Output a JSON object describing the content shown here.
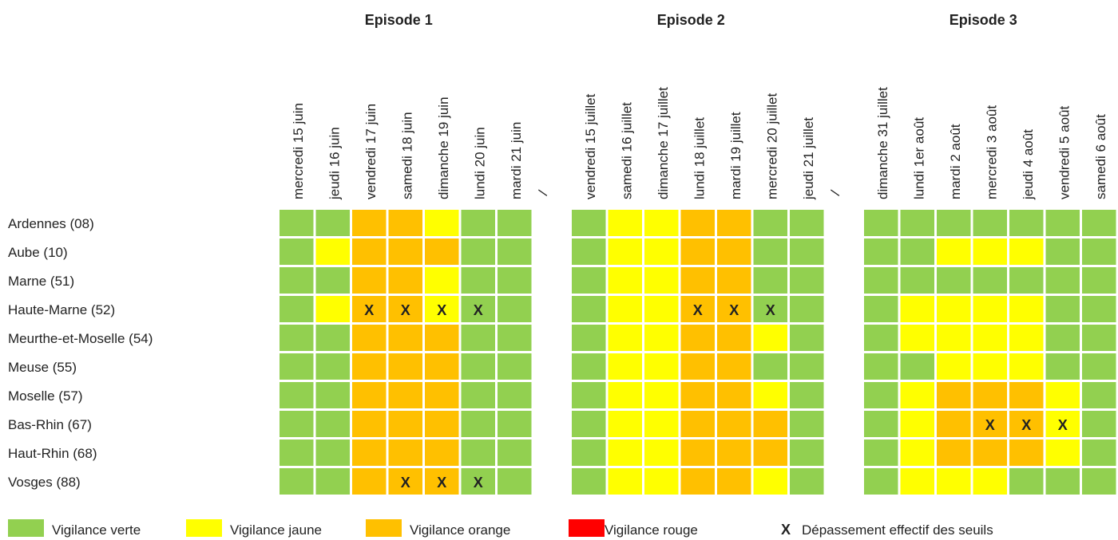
{
  "episodes": [
    {
      "title": "Episode 1",
      "days": [
        "mercredi 15 juin",
        "jeudi 16 juin",
        "vendredi 17 juin",
        "samedi 18 juin",
        "dimanche 19 juin",
        "lundi 20 juin",
        "mardi 21 juin"
      ]
    },
    {
      "title": "Episode 2",
      "days": [
        "vendredi 15 juillet",
        "samedi 16 juillet",
        "dimanche 17 juillet",
        "lundi 18 juillet",
        "mardi 19 juillet",
        "mercredi 20 juillet",
        "jeudi 21 juillet"
      ]
    },
    {
      "title": "Episode 3",
      "days": [
        "dimanche 31 juillet",
        "lundi 1er août",
        "mardi 2 août",
        "mercredi 3 août",
        "jeudi 4 août",
        "vendredi 5 août",
        "samedi 6 août"
      ]
    }
  ],
  "separator": "/",
  "rows": [
    {
      "name": "Ardennes (08)",
      "cells": [
        [
          0,
          0,
          2,
          2,
          1,
          0,
          0
        ],
        [
          0,
          1,
          1,
          2,
          2,
          0,
          0
        ],
        [
          0,
          0,
          0,
          0,
          0,
          0,
          0
        ]
      ]
    },
    {
      "name": "Aube (10)",
      "cells": [
        [
          0,
          1,
          2,
          2,
          2,
          0,
          0
        ],
        [
          0,
          1,
          1,
          2,
          2,
          0,
          0
        ],
        [
          0,
          0,
          1,
          1,
          1,
          0,
          0
        ]
      ]
    },
    {
      "name": "Marne (51)",
      "cells": [
        [
          0,
          0,
          2,
          2,
          1,
          0,
          0
        ],
        [
          0,
          1,
          1,
          2,
          2,
          0,
          0
        ],
        [
          0,
          0,
          0,
          0,
          0,
          0,
          0
        ]
      ]
    },
    {
      "name": "Haute-Marne (52)",
      "cells": [
        [
          0,
          1,
          {
            "level": 2,
            "mark": "X"
          },
          {
            "level": 2,
            "mark": "X"
          },
          {
            "level": 1,
            "mark": "X"
          },
          {
            "level": 0,
            "mark": "X"
          },
          0
        ],
        [
          0,
          1,
          1,
          {
            "level": 2,
            "mark": "X"
          },
          {
            "level": 2,
            "mark": "X"
          },
          {
            "level": 0,
            "mark": "X"
          },
          0
        ],
        [
          0,
          1,
          1,
          1,
          1,
          0,
          0
        ]
      ]
    },
    {
      "name": "Meurthe-et-Moselle (54)",
      "cells": [
        [
          0,
          0,
          2,
          2,
          2,
          0,
          0
        ],
        [
          0,
          1,
          1,
          2,
          2,
          1,
          0
        ],
        [
          0,
          1,
          1,
          1,
          1,
          0,
          0
        ]
      ]
    },
    {
      "name": "Meuse (55)",
      "cells": [
        [
          0,
          0,
          2,
          2,
          2,
          0,
          0
        ],
        [
          0,
          1,
          1,
          2,
          2,
          0,
          0
        ],
        [
          0,
          0,
          1,
          1,
          1,
          0,
          0
        ]
      ]
    },
    {
      "name": "Moselle (57)",
      "cells": [
        [
          0,
          0,
          2,
          2,
          2,
          0,
          0
        ],
        [
          0,
          1,
          1,
          2,
          2,
          1,
          0
        ],
        [
          0,
          1,
          2,
          2,
          2,
          1,
          0
        ]
      ]
    },
    {
      "name": "Bas-Rhin (67)",
      "cells": [
        [
          0,
          0,
          2,
          2,
          2,
          0,
          0
        ],
        [
          0,
          1,
          1,
          2,
          2,
          2,
          0
        ],
        [
          0,
          1,
          2,
          {
            "level": 2,
            "mark": "X"
          },
          {
            "level": 2,
            "mark": "X"
          },
          {
            "level": 1,
            "mark": "X"
          },
          0
        ]
      ]
    },
    {
      "name": "Haut-Rhin (68)",
      "cells": [
        [
          0,
          0,
          2,
          2,
          2,
          0,
          0
        ],
        [
          0,
          1,
          1,
          2,
          2,
          2,
          0
        ],
        [
          0,
          1,
          2,
          2,
          2,
          1,
          0
        ]
      ]
    },
    {
      "name": "Vosges (88)",
      "cells": [
        [
          0,
          0,
          2,
          {
            "level": 2,
            "mark": "X"
          },
          {
            "level": 2,
            "mark": "X"
          },
          {
            "level": 0,
            "mark": "X"
          },
          0
        ],
        [
          0,
          1,
          1,
          2,
          2,
          1,
          0
        ],
        [
          0,
          1,
          1,
          1,
          0,
          0,
          0
        ]
      ]
    }
  ],
  "legend": [
    {
      "color": "#92d050",
      "label": "Vigilance verte"
    },
    {
      "color": "#ffff00",
      "label": "Vigilance jaune"
    },
    {
      "color": "#ffc000",
      "label": "Vigilance orange"
    },
    {
      "color": "#ff0000",
      "label": "Vigilance rouge"
    },
    {
      "symbol": "X",
      "label": "Dépassement effectif des seuils"
    }
  ]
}
